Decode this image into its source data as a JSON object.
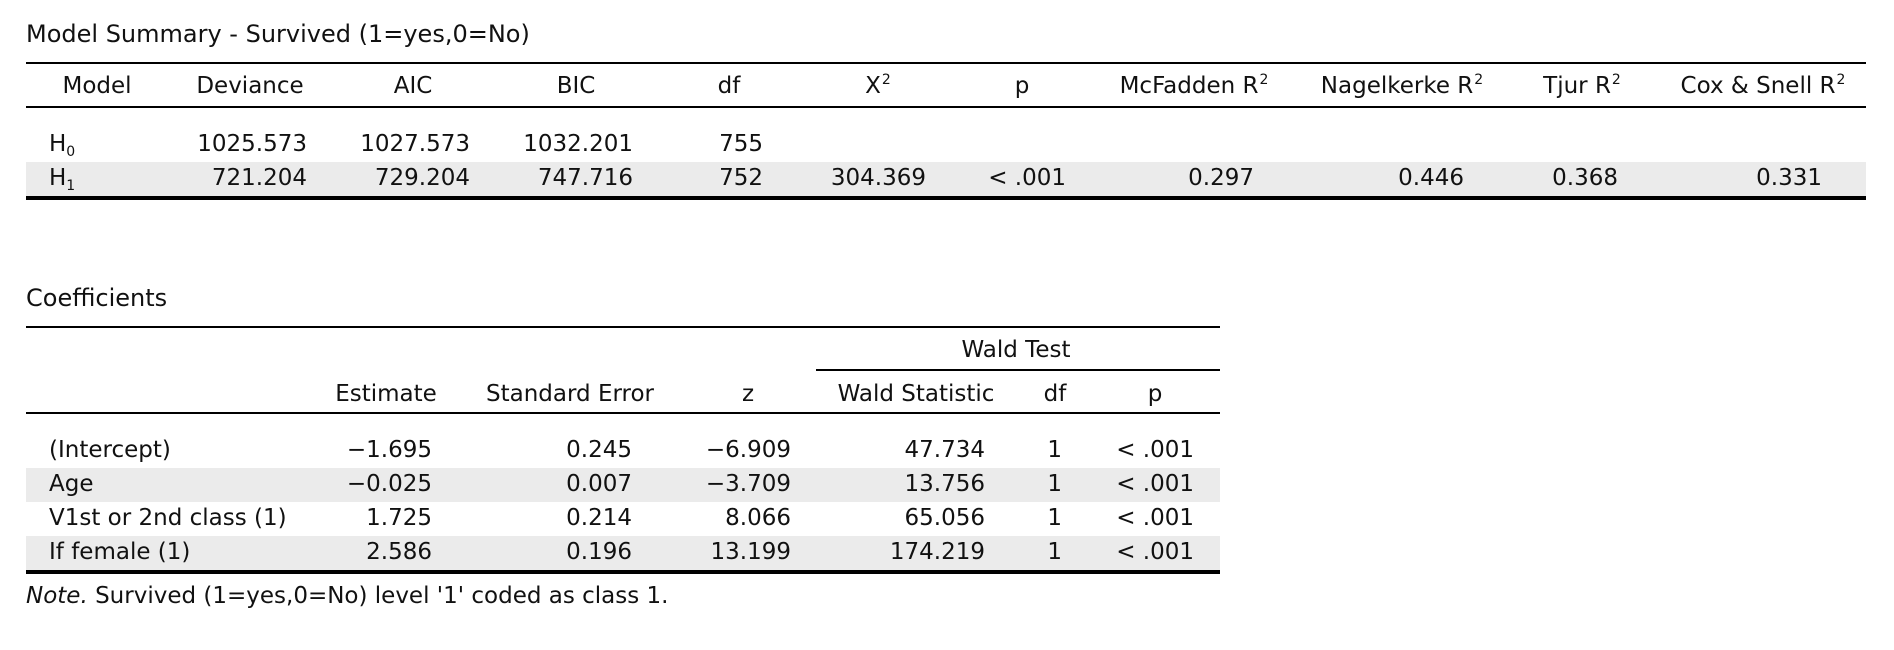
{
  "model_summary": {
    "title": "Model Summary - Survived (1=yes,0=No)",
    "headers": [
      "Model",
      "Deviance",
      "AIC",
      "BIC",
      "df",
      "X",
      "p",
      "McFadden R",
      "Nagelkerke R",
      "Tjur R",
      "Cox & Snell R"
    ],
    "superscript": "2",
    "rows": [
      {
        "label": "H",
        "sub": "0",
        "cells": [
          "1025.573",
          "1027.573",
          "1032.201",
          "755",
          "",
          "",
          "",
          "",
          "",
          ""
        ]
      },
      {
        "label": "H",
        "sub": "1",
        "cells": [
          "721.204",
          "729.204",
          "747.716",
          "752",
          "304.369",
          "< .001",
          "0.297",
          "0.446",
          "0.368",
          "0.331"
        ]
      }
    ]
  },
  "coefficients": {
    "title": "Coefficients",
    "group_header": "Wald Test",
    "headers": [
      "",
      "Estimate",
      "Standard Error",
      "z",
      "Wald Statistic",
      "df",
      "p"
    ],
    "rows": [
      {
        "label": "(Intercept)",
        "cells": [
          "−1.695",
          "0.245",
          "−6.909",
          "47.734",
          "1",
          "< .001"
        ]
      },
      {
        "label": "Age",
        "cells": [
          "−0.025",
          "0.007",
          "−3.709",
          "13.756",
          "1",
          "< .001"
        ]
      },
      {
        "label": "V1st or 2nd class (1)",
        "cells": [
          "1.725",
          "0.214",
          "8.066",
          "65.056",
          "1",
          "< .001"
        ]
      },
      {
        "label": "If female (1)",
        "cells": [
          "2.586",
          "0.196",
          "13.199",
          "174.219",
          "1",
          "< .001"
        ]
      }
    ],
    "note_label": "Note.",
    "note_text": " Survived (1=yes,0=No) level '1' coded as class 1."
  }
}
